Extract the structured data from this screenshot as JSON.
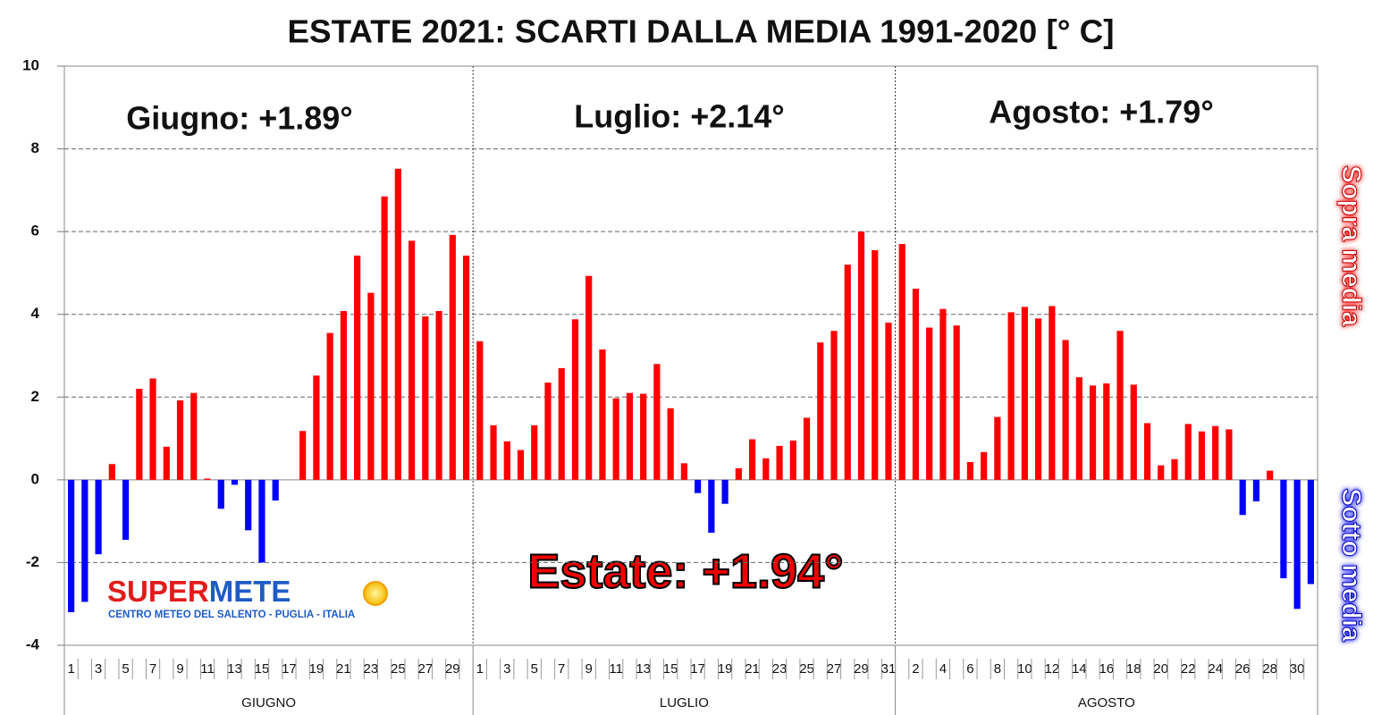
{
  "chart_data": {
    "type": "bar",
    "title": "ESTATE 2021: SCARTI DALLA MEDIA 1991-2020 [° C]",
    "categories": [
      "1",
      null,
      "3",
      null,
      "5",
      null,
      "7",
      null,
      "9",
      null,
      "11",
      null,
      "13",
      null,
      "15",
      null,
      "17",
      null,
      "19",
      null,
      "21",
      null,
      "23",
      null,
      "25",
      null,
      "27",
      null,
      "29",
      null,
      "1",
      null,
      "3",
      null,
      "5",
      null,
      "7",
      null,
      "9",
      null,
      "11",
      null,
      "13",
      null,
      "15",
      null,
      "17",
      null,
      "19",
      null,
      "21",
      null,
      "23",
      null,
      "25",
      null,
      "27",
      null,
      "29",
      null,
      "31",
      null,
      "2",
      null,
      "4",
      null,
      "6",
      null,
      "8",
      null,
      "10",
      null,
      "12",
      null,
      "14",
      null,
      "16",
      null,
      "18",
      null,
      "20",
      null,
      "22",
      null,
      "24",
      null,
      "26",
      null,
      "28",
      null,
      "30",
      null
    ],
    "values": [
      -3.2,
      -2.95,
      -1.8,
      0.38,
      -1.45,
      2.2,
      2.45,
      0.8,
      1.92,
      2.1,
      0.03,
      -0.7,
      -0.12,
      -1.22,
      -2.0,
      -0.5,
      0,
      1.18,
      2.52,
      3.55,
      4.08,
      5.42,
      4.52,
      6.85,
      7.52,
      5.78,
      3.95,
      4.08,
      5.92,
      5.42,
      3.35,
      1.32,
      0.93,
      0.72,
      1.32,
      2.35,
      2.7,
      3.88,
      4.93,
      3.15,
      1.97,
      2.1,
      2.08,
      2.8,
      1.73,
      0.4,
      -0.32,
      -1.28,
      -0.58,
      0.28,
      0.98,
      0.52,
      0.82,
      0.95,
      1.5,
      3.32,
      3.6,
      5.2,
      6.0,
      5.55,
      3.8,
      5.7,
      4.62,
      3.68,
      4.13,
      3.73,
      0.43,
      0.67,
      1.52,
      4.05,
      4.18,
      3.9,
      4.2,
      3.38,
      2.48,
      2.28,
      2.33,
      3.6,
      2.3,
      1.37,
      0.35,
      0.5,
      1.35,
      1.17,
      1.3,
      1.22,
      -0.85,
      -0.52,
      0.22,
      -2.38,
      -3.12,
      -2.52
    ],
    "groups": [
      {
        "label": "GIUGNO",
        "count": 30
      },
      {
        "label": "LUGLIO",
        "count": 31
      },
      {
        "label": "AGOSTO",
        "count": 31
      }
    ],
    "color_positive": "#ff0000",
    "color_negative": "#0000ff",
    "ylim": [
      -4,
      10
    ],
    "yticks": [
      -4,
      -2,
      0,
      2,
      4,
      6,
      8,
      10
    ],
    "grid": true,
    "annotations": {
      "giugno": "Giugno: +1.89°",
      "luglio": "Luglio: +2.14°",
      "agosto": "Agosto: +1.79°",
      "estate": "Estate: +1.94°",
      "sopra": "Sopra media",
      "sotto": "Sotto media"
    },
    "logo": {
      "part1": "SUPER",
      "part2": "METE",
      "subtitle": "CENTRO METEO DEL SALENTO - PUGLIA - ITALIA"
    }
  }
}
